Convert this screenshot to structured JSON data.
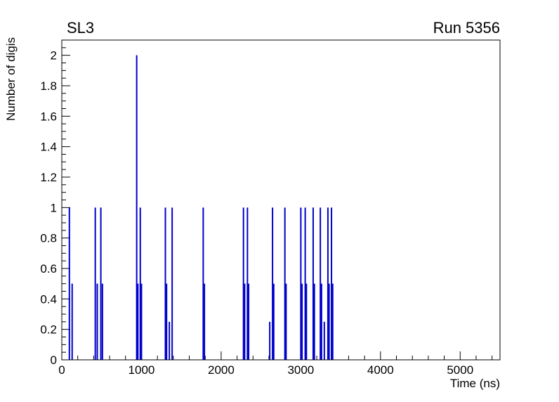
{
  "page": {
    "background": "#ffffff"
  },
  "chart_data": {
    "type": "bar",
    "title_left": "SL3",
    "title_right": "Run 5356",
    "xlabel": "Time (ns)",
    "ylabel": "Number of digis",
    "xlim": [
      0,
      5500
    ],
    "ylim": [
      0,
      2.1
    ],
    "x_major_ticks": [
      0,
      1000,
      2000,
      3000,
      4000,
      5000
    ],
    "x_minor_step": 200,
    "y_major_ticks": [
      0,
      0.2,
      0.4,
      0.6,
      0.8,
      1,
      1.2,
      1.4,
      1.6,
      1.8,
      2
    ],
    "y_minor_step": 0.05,
    "line_color": "#0000cc",
    "frame_color": "#000000",
    "spikes": [
      [
        95,
        1
      ],
      [
        130,
        0.5
      ],
      [
        420,
        1
      ],
      [
        445,
        0.5
      ],
      [
        490,
        1
      ],
      [
        510,
        0.5
      ],
      [
        940,
        2
      ],
      [
        955,
        0.5
      ],
      [
        985,
        1
      ],
      [
        1000,
        0.5
      ],
      [
        1300,
        1
      ],
      [
        1315,
        0.5
      ],
      [
        1350,
        0.25
      ],
      [
        1385,
        1
      ],
      [
        1775,
        1
      ],
      [
        1790,
        0.5
      ],
      [
        2280,
        1
      ],
      [
        2295,
        0.5
      ],
      [
        2330,
        1
      ],
      [
        2345,
        0.5
      ],
      [
        2610,
        0.25
      ],
      [
        2645,
        1
      ],
      [
        2660,
        0.5
      ],
      [
        2800,
        1
      ],
      [
        2815,
        0.5
      ],
      [
        3000,
        1
      ],
      [
        3015,
        0.5
      ],
      [
        3055,
        1
      ],
      [
        3070,
        0.5
      ],
      [
        3155,
        1
      ],
      [
        3170,
        0.5
      ],
      [
        3245,
        1
      ],
      [
        3260,
        0.5
      ],
      [
        3295,
        0.25
      ],
      [
        3340,
        1
      ],
      [
        3355,
        0.5
      ],
      [
        3385,
        1
      ],
      [
        3400,
        0.5
      ]
    ]
  }
}
